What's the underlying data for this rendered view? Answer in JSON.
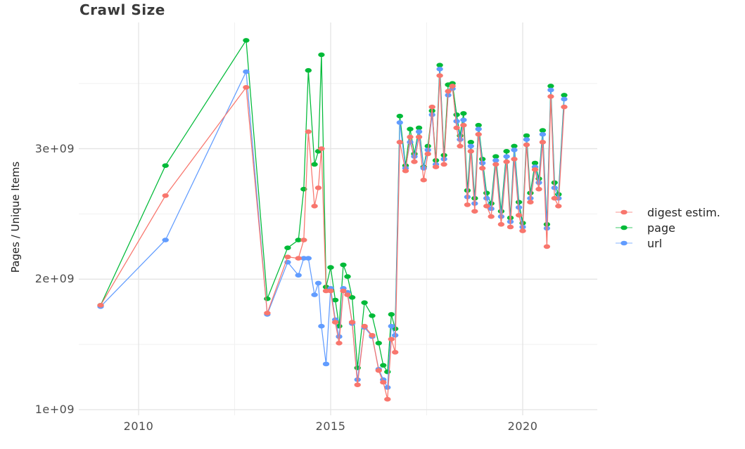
{
  "chart_data": {
    "type": "line",
    "title": "Crawl Size",
    "xlabel": "",
    "ylabel": "Pages / Unique Items",
    "values_unit": "1e9 (billions)",
    "grid": true,
    "legend": {
      "position": "right"
    },
    "x": [
      2009.01,
      2010.7,
      2012.8,
      2013.35,
      2013.88,
      2014.16,
      2014.3,
      2014.42,
      2014.58,
      2014.68,
      2014.76,
      2014.88,
      2015.0,
      2015.12,
      2015.22,
      2015.33,
      2015.44,
      2015.56,
      2015.7,
      2015.88,
      2016.08,
      2016.25,
      2016.37,
      2016.48,
      2016.58,
      2016.68,
      2016.8,
      2016.95,
      2017.07,
      2017.18,
      2017.3,
      2017.42,
      2017.53,
      2017.64,
      2017.74,
      2017.84,
      2017.95,
      2018.06,
      2018.17,
      2018.28,
      2018.37,
      2018.46,
      2018.56,
      2018.65,
      2018.75,
      2018.85,
      2018.95,
      2019.06,
      2019.18,
      2019.3,
      2019.44,
      2019.58,
      2019.68,
      2019.78,
      2019.9,
      2020.0,
      2020.1,
      2020.2,
      2020.32,
      2020.42,
      2020.52,
      2020.63,
      2020.73,
      2020.83,
      2020.93,
      2021.08
    ],
    "series": [
      {
        "name": "digest estim.",
        "color": "#F8766D",
        "values": [
          1.8,
          2.64,
          3.47,
          1.74,
          2.17,
          2.16,
          2.3,
          3.13,
          2.56,
          2.7,
          3.0,
          1.91,
          1.91,
          1.67,
          1.51,
          1.91,
          1.88,
          1.67,
          1.19,
          1.64,
          1.57,
          1.3,
          1.21,
          1.08,
          1.54,
          1.44,
          3.05,
          2.83,
          3.09,
          2.9,
          3.09,
          2.76,
          2.96,
          3.32,
          2.86,
          3.56,
          2.88,
          3.44,
          3.48,
          3.16,
          3.02,
          3.18,
          2.57,
          2.98,
          2.52,
          3.11,
          2.85,
          2.56,
          2.48,
          2.88,
          2.42,
          2.9,
          2.4,
          2.92,
          2.49,
          2.37,
          3.03,
          2.59,
          2.84,
          2.69,
          3.05,
          2.25,
          3.4,
          2.62,
          2.56,
          3.32
        ]
      },
      {
        "name": "page",
        "color": "#00BA38",
        "values": [
          1.8,
          2.87,
          3.83,
          1.85,
          2.24,
          2.3,
          2.69,
          3.6,
          2.88,
          2.98,
          3.72,
          1.94,
          2.09,
          1.84,
          1.64,
          2.11,
          2.02,
          1.86,
          1.32,
          1.82,
          1.72,
          1.51,
          1.34,
          1.29,
          1.73,
          1.62,
          3.25,
          2.87,
          3.15,
          2.96,
          3.16,
          2.86,
          3.02,
          3.29,
          2.91,
          3.64,
          2.95,
          3.49,
          3.5,
          3.26,
          3.1,
          3.27,
          2.68,
          3.05,
          2.62,
          3.18,
          2.92,
          2.66,
          2.58,
          2.94,
          2.52,
          2.98,
          2.47,
          3.02,
          2.59,
          2.43,
          3.1,
          2.66,
          2.89,
          2.77,
          3.14,
          2.42,
          3.48,
          2.74,
          2.65,
          3.41
        ]
      },
      {
        "name": "url",
        "color": "#619CFF",
        "values": [
          1.79,
          2.3,
          3.59,
          1.73,
          2.13,
          2.03,
          2.16,
          2.16,
          1.88,
          1.97,
          1.64,
          1.35,
          1.93,
          1.69,
          1.56,
          1.93,
          1.9,
          1.66,
          1.23,
          1.63,
          1.56,
          1.31,
          1.23,
          1.17,
          1.64,
          1.57,
          3.2,
          2.85,
          3.05,
          2.94,
          3.13,
          2.85,
          2.99,
          3.26,
          2.88,
          3.61,
          2.92,
          3.41,
          3.46,
          3.21,
          3.07,
          3.22,
          2.63,
          3.02,
          2.58,
          3.15,
          2.89,
          2.62,
          2.54,
          2.91,
          2.48,
          2.94,
          2.44,
          2.99,
          2.55,
          2.4,
          3.07,
          2.62,
          2.86,
          2.74,
          3.11,
          2.39,
          3.45,
          2.7,
          2.62,
          3.38
        ]
      }
    ],
    "draw_order": [
      "page",
      "url",
      "digest estim."
    ],
    "x_axis": {
      "range": [
        2008.443,
        2021.941
      ],
      "major_ticks": [
        {
          "value": 2010,
          "label": "2010"
        },
        {
          "value": 2015,
          "label": "2015"
        },
        {
          "value": 2020,
          "label": "2020"
        }
      ],
      "minor_ticks": [
        2012.5,
        2017.5
      ]
    },
    "y_axis": {
      "range": [
        0.957,
        3.967
      ],
      "major_ticks": [
        {
          "value": 1,
          "label": "1e+09"
        },
        {
          "value": 2,
          "label": "2e+09"
        },
        {
          "value": 3,
          "label": "3e+09"
        }
      ],
      "minor_ticks": [
        1.5,
        2.5,
        3.5
      ]
    },
    "colors": {
      "background": "#ffffff",
      "grid_major": "#e4e4e4",
      "grid_minor": "#f1f1f1",
      "axis_text": "#4d4d4d",
      "title_text": "#3a3a3a"
    },
    "marker": {
      "shape": "ellipse",
      "rx": 4.7,
      "ry": 3.3
    }
  }
}
